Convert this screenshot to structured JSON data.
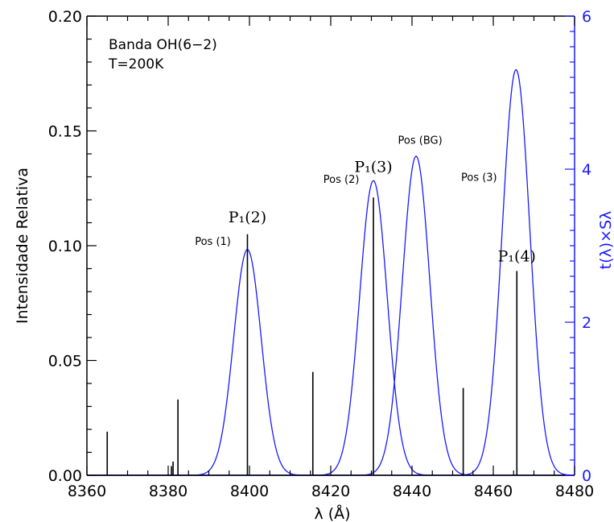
{
  "chart_data": {
    "type": "line",
    "annotations": [
      "Banda OH(6−2)",
      "T=200K"
    ],
    "xlabel": "λ (Å)",
    "ylabel": "Intensidade Relativa",
    "y2label": "t(λ)×Sλ",
    "xlim": [
      8360,
      8480
    ],
    "ylim": [
      0,
      0.2
    ],
    "y2lim": [
      0,
      6
    ],
    "x_ticks": [
      8360,
      8380,
      8400,
      8420,
      8440,
      8460,
      8480
    ],
    "y_ticks": [
      "0.00",
      "0.05",
      "0.10",
      "0.15",
      "0.20"
    ],
    "y2_ticks": [
      "0",
      "2",
      "4",
      "6"
    ],
    "grid": false,
    "colors": {
      "axis_left": "#000000",
      "axis_right": "#1a1aff",
      "lines": "#000000",
      "filters": "#1a1aff"
    },
    "emission_lines": [
      {
        "x": 8365.0,
        "y": 0.019
      },
      {
        "x": 8380.8,
        "y": 0.004
      },
      {
        "x": 8381.2,
        "y": 0.006
      },
      {
        "x": 8382.4,
        "y": 0.033
      },
      {
        "x": 8399.5,
        "y": 0.105,
        "label": "P1(2)"
      },
      {
        "x": 8415.6,
        "y": 0.045
      },
      {
        "x": 8430.5,
        "y": 0.121,
        "label": "P1(3)"
      },
      {
        "x": 8452.6,
        "y": 0.038
      },
      {
        "x": 8465.8,
        "y": 0.089,
        "label": "P1(4)"
      }
    ],
    "line_labels": [
      {
        "text": "P₁(2)",
        "x": 8399.5,
        "y": 0.108
      },
      {
        "text": "P₁(3)",
        "x": 8430.5,
        "y": 0.13
      },
      {
        "text": "P₁(4)",
        "x": 8465.8,
        "y": 0.091
      }
    ],
    "filters": [
      {
        "name": "Pos (1)",
        "center": 8399.5,
        "fwhm": 8.0,
        "peak": 2.95,
        "label_x": 8391.0,
        "label_y": 3.01
      },
      {
        "name": "Pos (2)",
        "center": 8430.5,
        "fwhm": 8.0,
        "peak": 3.85,
        "label_x": 8422.6,
        "label_y": 3.82
      },
      {
        "name": "Pos (BG)",
        "center": 8441.0,
        "fwhm": 8.0,
        "peak": 4.17,
        "label_x": 8442.0,
        "label_y": 4.33
      },
      {
        "name": "Pos (3)",
        "center": 8465.6,
        "fwhm": 8.0,
        "peak": 5.3,
        "label_x": 8456.5,
        "label_y": 3.85
      }
    ]
  }
}
